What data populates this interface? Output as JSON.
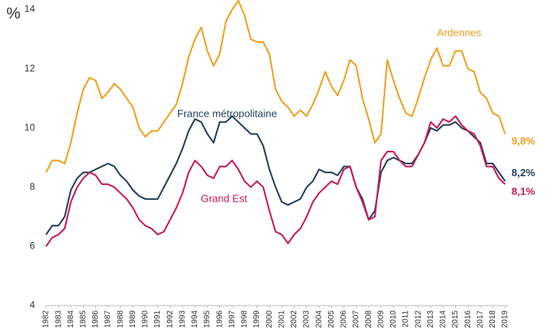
{
  "chart_data": {
    "type": "line",
    "y_label": "%",
    "x": [
      1982,
      1982.5,
      1983,
      1983.5,
      1984,
      1984.5,
      1985,
      1985.5,
      1986,
      1986.5,
      1987,
      1987.5,
      1988,
      1988.5,
      1989,
      1989.5,
      1990,
      1990.5,
      1991,
      1991.5,
      1992,
      1992.5,
      1993,
      1993.5,
      1994,
      1994.5,
      1995,
      1995.5,
      1996,
      1996.5,
      1997,
      1997.5,
      1998,
      1998.5,
      1999,
      1999.5,
      2000,
      2000.5,
      2001,
      2001.5,
      2002,
      2002.5,
      2003,
      2003.5,
      2004,
      2004.5,
      2005,
      2005.5,
      2006,
      2006.5,
      2007,
      2007.5,
      2008,
      2008.5,
      2009,
      2009.5,
      2010,
      2010.5,
      2011,
      2011.5,
      2012,
      2012.5,
      2013,
      2013.5,
      2014,
      2014.5,
      2015,
      2015.5,
      2016,
      2016.5,
      2017,
      2017.5,
      2018,
      2018.5,
      2019
    ],
    "series": [
      {
        "name": "Ardennes",
        "color": "#f0a020",
        "end_label": "9,8%",
        "values": [
          8.5,
          8.9,
          8.9,
          8.8,
          9.5,
          10.5,
          11.3,
          11.7,
          11.6,
          11.0,
          11.2,
          11.5,
          11.3,
          11.0,
          10.7,
          10.0,
          9.7,
          9.9,
          9.9,
          10.2,
          10.5,
          10.8,
          11.5,
          12.4,
          13.0,
          13.4,
          12.6,
          12.1,
          12.5,
          13.6,
          14.0,
          14.3,
          13.8,
          13.0,
          12.9,
          12.9,
          12.5,
          11.3,
          10.9,
          10.7,
          10.4,
          10.6,
          10.4,
          10.8,
          11.3,
          11.9,
          11.4,
          11.1,
          11.6,
          12.3,
          12.1,
          11.0,
          10.3,
          9.5,
          9.8,
          12.3,
          11.6,
          11.0,
          10.5,
          10.4,
          11.0,
          11.7,
          12.3,
          12.7,
          12.1,
          12.1,
          12.6,
          12.6,
          12.0,
          11.9,
          11.2,
          11.0,
          10.5,
          10.4,
          9.8
        ]
      },
      {
        "name": "France métropolitaine",
        "color": "#1f3f5a",
        "end_label": "8,2%",
        "values": [
          6.4,
          6.7,
          6.7,
          7.0,
          7.9,
          8.3,
          8.5,
          8.5,
          8.6,
          8.7,
          8.8,
          8.7,
          8.4,
          8.2,
          7.9,
          7.7,
          7.6,
          7.6,
          7.6,
          8.0,
          8.4,
          8.8,
          9.3,
          9.9,
          10.3,
          10.2,
          9.8,
          9.5,
          10.2,
          10.2,
          10.4,
          10.2,
          10.0,
          9.8,
          9.8,
          9.4,
          8.6,
          8.0,
          7.5,
          7.4,
          7.5,
          7.6,
          8.0,
          8.2,
          8.6,
          8.5,
          8.5,
          8.4,
          8.7,
          8.7,
          8.0,
          7.6,
          6.9,
          7.2,
          8.5,
          8.9,
          9.0,
          8.9,
          8.8,
          8.8,
          9.1,
          9.5,
          10.0,
          9.9,
          10.1,
          10.1,
          10.2,
          10.0,
          9.9,
          9.7,
          9.5,
          8.8,
          8.8,
          8.5,
          8.2
        ]
      },
      {
        "name": "Grand Est",
        "color": "#c8195a",
        "end_label": "8,1%",
        "values": [
          6.0,
          6.3,
          6.4,
          6.6,
          7.5,
          8.0,
          8.3,
          8.5,
          8.4,
          8.1,
          8.1,
          8.0,
          7.8,
          7.6,
          7.3,
          6.9,
          6.7,
          6.6,
          6.4,
          6.5,
          6.9,
          7.3,
          7.8,
          8.5,
          8.9,
          8.7,
          8.4,
          8.3,
          8.7,
          8.7,
          8.9,
          8.6,
          8.2,
          8.0,
          8.2,
          8.0,
          7.2,
          6.5,
          6.4,
          6.1,
          6.4,
          6.6,
          7.0,
          7.5,
          7.8,
          8.0,
          8.2,
          8.1,
          8.6,
          8.7,
          8.0,
          7.5,
          6.9,
          7.0,
          8.9,
          9.2,
          9.2,
          8.9,
          8.7,
          8.7,
          9.1,
          9.5,
          10.2,
          10.0,
          10.3,
          10.2,
          10.4,
          10.1,
          9.9,
          9.8,
          9.4,
          8.7,
          8.7,
          8.3,
          8.1
        ]
      }
    ],
    "xlim": [
      1982,
      2019
    ],
    "xticks": [
      1982,
      1983,
      1984,
      1985,
      1986,
      1987,
      1988,
      1989,
      1990,
      1991,
      1992,
      1993,
      1994,
      1995,
      1996,
      1997,
      1998,
      1999,
      2000,
      2001,
      2002,
      2003,
      2004,
      2005,
      2006,
      2007,
      2008,
      2009,
      2010,
      2011,
      2012,
      2013,
      2014,
      2015,
      2016,
      2017,
      2018,
      2019
    ],
    "ylim": [
      4,
      14
    ],
    "yticks": [
      4,
      6,
      8,
      10,
      12,
      14
    ],
    "grid": false
  }
}
